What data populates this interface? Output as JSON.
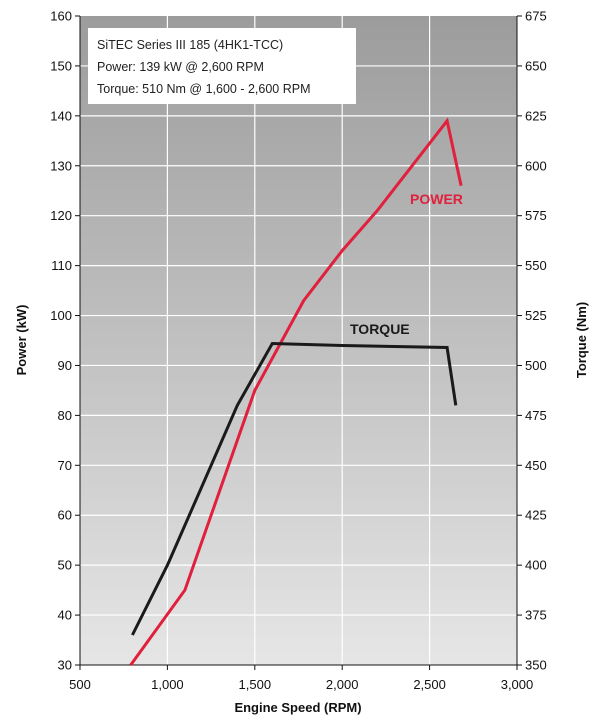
{
  "chart_data": {
    "type": "line",
    "xlabel": "Engine Speed (RPM)",
    "ylabel_left": "Power (kW)",
    "ylabel_right": "Torque (Nm)",
    "xlim": [
      500,
      3000
    ],
    "ylim_left": [
      30,
      160
    ],
    "ylim_right": [
      350,
      675
    ],
    "x_ticks": [
      500,
      1000,
      1500,
      2000,
      2500,
      3000
    ],
    "x_tick_labels": [
      "500",
      "1,000",
      "1,500",
      "2,000",
      "2,500",
      "3,000"
    ],
    "y_left_ticks": [
      30,
      40,
      50,
      60,
      70,
      80,
      90,
      100,
      110,
      120,
      130,
      140,
      150,
      160
    ],
    "y_left_tick_labels": [
      "30",
      "40",
      "50",
      "60",
      "70",
      "80",
      "90",
      "100",
      "110",
      "120",
      "130",
      "140",
      "150",
      "160"
    ],
    "y_right_ticks": [
      350,
      375,
      400,
      425,
      450,
      475,
      500,
      525,
      550,
      575,
      600,
      625,
      650,
      675
    ],
    "y_right_tick_labels": [
      "350",
      "375",
      "400",
      "425",
      "450",
      "475",
      "500",
      "525",
      "550",
      "575",
      "600",
      "625",
      "650",
      "675"
    ],
    "grid": true,
    "info_box": [
      "SiTEC Series III 185 (4HK1-TCC)",
      "Power: 139 kW @ 2,600 RPM",
      "Torque: 510 Nm @ 1,600 - 2,600 RPM"
    ],
    "series": [
      {
        "name": "POWER",
        "axis": "left",
        "color": "#e0203c",
        "x": [
          790,
          1100,
          1500,
          1780,
          2000,
          2200,
          2400,
          2600,
          2680
        ],
        "values": [
          30,
          45,
          85,
          103,
          113,
          121,
          130,
          139,
          126
        ]
      },
      {
        "name": "TORQUE",
        "axis": "right",
        "color": "#1a1a1a",
        "x": [
          800,
          1000,
          1200,
          1400,
          1600,
          2000,
          2600,
          2650
        ],
        "values": [
          365,
          400,
          440,
          480,
          511,
          510,
          509,
          480
        ]
      }
    ]
  }
}
